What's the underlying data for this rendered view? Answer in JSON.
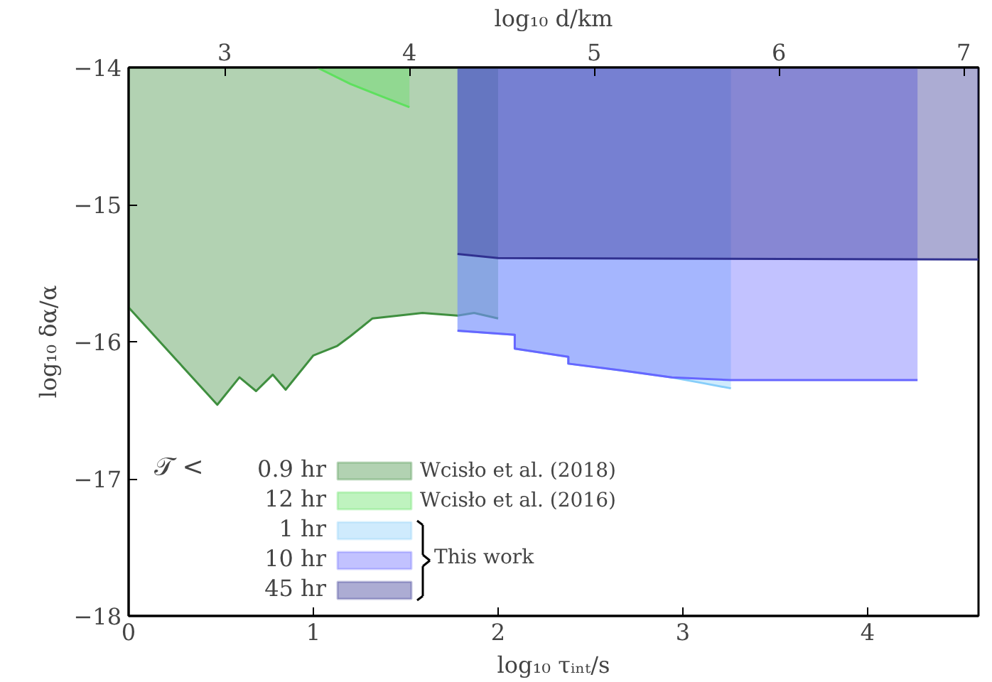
{
  "chart_data": {
    "type": "area",
    "xlabel": "log₁₀ τᵢₙₜ/s",
    "ylabel": "log₁₀ δα/α",
    "x2label": "log₁₀ d/km",
    "xlim": [
      0,
      4.6
    ],
    "xticks": [
      0,
      1,
      2,
      3,
      4
    ],
    "x2lim": [
      2.48,
      7.08
    ],
    "x2ticks": [
      3,
      4,
      5,
      6,
      7
    ],
    "ylim": [
      -18,
      -14
    ],
    "yticks": [
      {
        "value": -18,
        "label": "−18"
      },
      {
        "value": -17,
        "label": "−17"
      },
      {
        "value": -16,
        "label": "−16"
      },
      {
        "value": -15,
        "label": "−15"
      },
      {
        "value": -14,
        "label": "−14"
      }
    ],
    "legend": "bottom left",
    "legend_title": "𝒯 <",
    "annotations": [
      "Wcisło et al. (2018)",
      "Wcisło et al. (2016)",
      "This work"
    ],
    "series": [
      {
        "name": "0.9 hr",
        "color": "#3f8f3f",
        "x": [
          0,
          0.48,
          0.6,
          0.69,
          0.78,
          0.85,
          1.0,
          1.13,
          1.2,
          1.32,
          1.46,
          1.59,
          1.78,
          1.87,
          2.0
        ],
        "values": [
          -15.75,
          -16.46,
          -16.26,
          -16.36,
          -16.24,
          -16.35,
          -16.1,
          -16.03,
          -15.96,
          -15.83,
          -15.81,
          -15.79,
          -15.81,
          -15.79,
          -15.83
        ]
      },
      {
        "name": "12 hr",
        "color": "#5ee05e",
        "x": [
          1.02,
          1.2,
          1.35,
          1.52
        ],
        "values": [
          -14.0,
          -14.12,
          -14.2,
          -14.29
        ]
      },
      {
        "name": "1 hr",
        "color": "#87cefa",
        "x": [
          1.78,
          2.09,
          2.09,
          2.38,
          2.38,
          2.67,
          2.94,
          3.1,
          3.26
        ],
        "values": [
          -15.92,
          -15.95,
          -16.05,
          -16.11,
          -16.16,
          -16.21,
          -16.26,
          -16.3,
          -16.34
        ]
      },
      {
        "name": "10 hr",
        "color": "#6666ff",
        "x": [
          1.78,
          2.09,
          2.09,
          2.38,
          2.38,
          2.67,
          2.94,
          3.26,
          4.27
        ],
        "values": [
          -15.92,
          -15.95,
          -16.05,
          -16.11,
          -16.16,
          -16.21,
          -16.26,
          -16.28,
          -16.28
        ]
      },
      {
        "name": "45 hr",
        "color": "#303090",
        "x": [
          1.78,
          2.0,
          4.6
        ],
        "values": [
          -15.36,
          -15.39,
          -15.4
        ]
      }
    ]
  }
}
